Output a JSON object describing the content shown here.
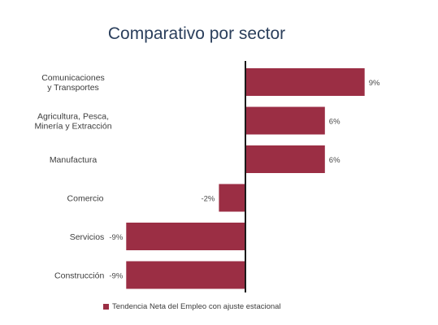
{
  "chart_data": {
    "type": "bar",
    "orientation": "horizontal",
    "title": "Comparativo por sector",
    "categories": [
      [
        "Comunicaciones",
        "y Transportes"
      ],
      [
        "Agricultura, Pesca,",
        "Minería y Extracción"
      ],
      [
        "Manufactura"
      ],
      [
        "Comercio"
      ],
      [
        "Servicios"
      ],
      [
        "Construcción"
      ]
    ],
    "series": [
      {
        "name": "Tendencia Neta del Empleo con ajuste estacional",
        "values": [
          9,
          6,
          6,
          -2,
          -9,
          -9
        ],
        "labels": [
          "9%",
          "6%",
          "6%",
          "-2%",
          "-9%",
          "-9%"
        ],
        "color": "#9b2e44"
      }
    ],
    "xlim": [
      -9,
      9
    ],
    "grid": false,
    "legend_position": "bottom",
    "axis_color": "#1a1a1a"
  }
}
